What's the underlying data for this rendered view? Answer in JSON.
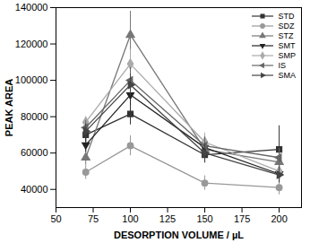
{
  "chart_data": {
    "type": "line",
    "x_label": "DESORPTION VOLUME / µL",
    "y_label": "PEAK AREA",
    "x": [
      70,
      100,
      150,
      200
    ],
    "xlim": [
      50,
      215
    ],
    "xticks": [
      50,
      75,
      100,
      125,
      150,
      175,
      200
    ],
    "ylim": [
      30000,
      140000
    ],
    "yticks": [
      40000,
      60000,
      80000,
      100000,
      120000,
      140000
    ],
    "legend": "top-right",
    "series": [
      {
        "name": "STD",
        "color": "#333333",
        "marker": "square",
        "values": [
          70000,
          81500,
          59000,
          62000
        ],
        "errors": [
          4000,
          6000,
          4500,
          13000
        ]
      },
      {
        "name": "SDZ",
        "color": "#999999",
        "marker": "circle",
        "values": [
          49500,
          64000,
          43500,
          41000
        ],
        "errors": [
          4000,
          5500,
          4000,
          4000
        ]
      },
      {
        "name": "STZ",
        "color": "#777777",
        "marker": "triangle",
        "values": [
          57500,
          125000,
          62000,
          55000
        ],
        "errors": [
          4000,
          13000,
          5000,
          5000
        ]
      },
      {
        "name": "SMT",
        "color": "#222222",
        "marker": "triangle-down",
        "values": [
          64500,
          92000,
          63000,
          48500
        ],
        "errors": [
          4000,
          6000,
          5000,
          4500
        ]
      },
      {
        "name": "SMP",
        "color": "#aaaaaa",
        "marker": "diamond",
        "values": [
          77000,
          109000,
          66000,
          50000
        ],
        "errors": [
          3000,
          8000,
          5000,
          4500
        ]
      },
      {
        "name": "IS",
        "color": "#666666",
        "marker": "triangle-left",
        "values": [
          74000,
          100000,
          64000,
          57500
        ],
        "errors": [
          4000,
          7000,
          5000,
          5000
        ]
      },
      {
        "name": "SMA",
        "color": "#444444",
        "marker": "triangle-right",
        "values": [
          72000,
          97500,
          60000,
          48000
        ],
        "errors": [
          4000,
          6000,
          5000,
          4500
        ]
      }
    ]
  }
}
